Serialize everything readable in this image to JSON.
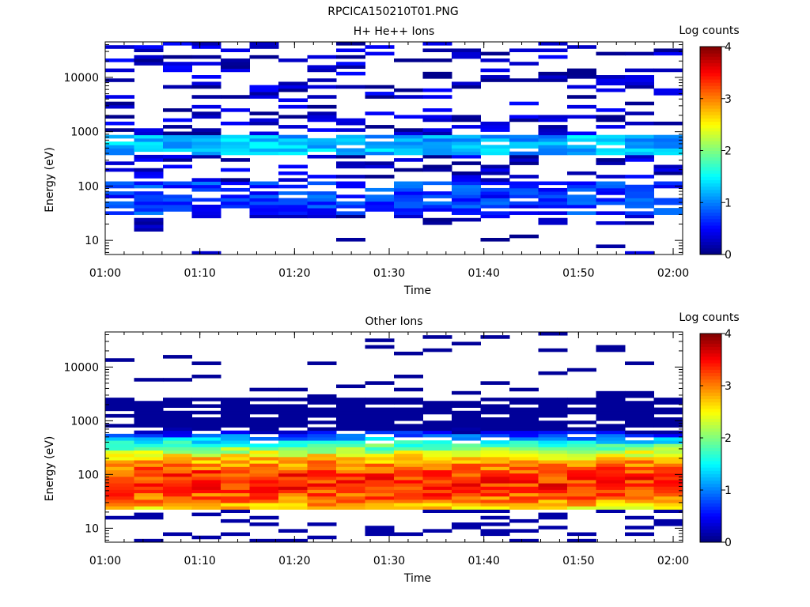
{
  "figure_title": "RPCICA150210T01.PNG",
  "colorbar": {
    "label": "Log counts",
    "range": [
      0,
      4
    ],
    "ticks": [
      "0",
      "1",
      "2",
      "3",
      "4"
    ]
  },
  "chart_data": [
    {
      "type": "heatmap",
      "title": "H+ He++ Ions",
      "xlabel": "Time",
      "ylabel": "Energy (eV)",
      "x_time_range": [
        "01:00",
        "02:01"
      ],
      "x_ticks": [
        "01:00",
        "01:10",
        "01:20",
        "01:30",
        "01:40",
        "01:50",
        "02:00"
      ],
      "y_scale": "log",
      "ylim": [
        5.5,
        45000
      ],
      "y_ticks": [
        "10",
        "100",
        "1000",
        "10000"
      ],
      "bins": {
        "time_columns": 20,
        "energy_rows": 64
      },
      "profile": "sparse",
      "grid": false
    },
    {
      "type": "heatmap",
      "title": "Other Ions",
      "xlabel": "Time",
      "ylabel": "Energy (eV)",
      "x_time_range": [
        "01:00",
        "02:01"
      ],
      "x_ticks": [
        "01:00",
        "01:10",
        "01:20",
        "01:30",
        "01:40",
        "01:50",
        "02:00"
      ],
      "y_scale": "log",
      "ylim": [
        5.5,
        45000
      ],
      "y_ticks": [
        "10",
        "100",
        "1000",
        "10000"
      ],
      "bins": {
        "time_columns": 20,
        "energy_rows": 64
      },
      "profile": "dense",
      "grid": false
    }
  ]
}
